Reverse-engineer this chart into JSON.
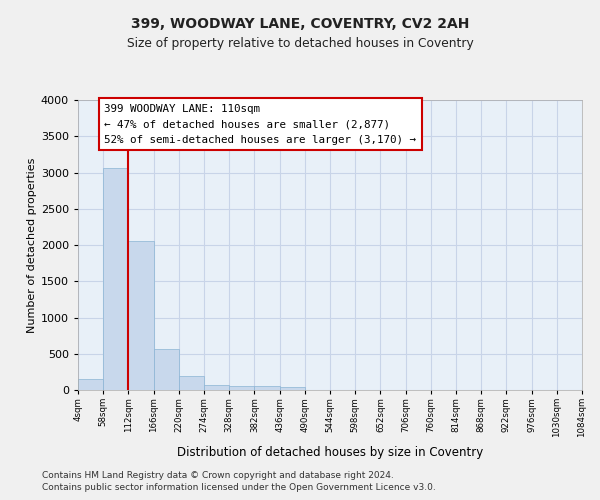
{
  "title1": "399, WOODWAY LANE, COVENTRY, CV2 2AH",
  "title2": "Size of property relative to detached houses in Coventry",
  "xlabel": "Distribution of detached houses by size in Coventry",
  "ylabel": "Number of detached properties",
  "footnote1": "Contains HM Land Registry data © Crown copyright and database right 2024.",
  "footnote2": "Contains public sector information licensed under the Open Government Licence v3.0.",
  "annotation_title": "399 WOODWAY LANE: 110sqm",
  "annotation_line1": "← 47% of detached houses are smaller (2,877)",
  "annotation_line2": "52% of semi-detached houses are larger (3,170) →",
  "bin_starts": [
    4,
    58,
    112,
    166,
    220,
    274,
    328,
    382,
    436,
    490,
    544,
    598,
    652,
    706,
    760,
    814,
    868,
    922,
    976,
    1030
  ],
  "bin_width": 54,
  "bar_heights": [
    150,
    3060,
    2060,
    570,
    200,
    70,
    55,
    55,
    40,
    0,
    0,
    0,
    0,
    0,
    0,
    0,
    0,
    0,
    0,
    0
  ],
  "bar_color": "#c8d8ec",
  "bar_edgecolor": "#8ab4d4",
  "grid_color": "#c8d4e8",
  "bg_color": "#e8f0f8",
  "fig_bg_color": "#f0f0f0",
  "vline_color": "#cc0000",
  "vline_x": 112,
  "ylim_max": 4000,
  "yticks": [
    0,
    500,
    1000,
    1500,
    2000,
    2500,
    3000,
    3500,
    4000
  ],
  "tick_labels": [
    "4sqm",
    "58sqm",
    "112sqm",
    "166sqm",
    "220sqm",
    "274sqm",
    "328sqm",
    "382sqm",
    "436sqm",
    "490sqm",
    "544sqm",
    "598sqm",
    "652sqm",
    "706sqm",
    "760sqm",
    "814sqm",
    "868sqm",
    "922sqm",
    "976sqm",
    "1030sqm",
    "1084sqm"
  ]
}
